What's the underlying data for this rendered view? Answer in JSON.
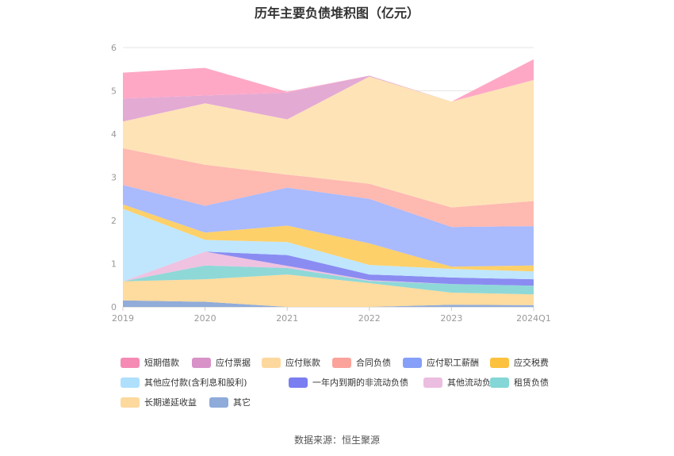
{
  "chart_data": {
    "type": "area",
    "stacked": true,
    "title": "历年主要负债堆积图（亿元）",
    "categories": [
      "2019",
      "2020",
      "2021",
      "2022",
      "2023",
      "2024Q1"
    ],
    "ylim": [
      0,
      6
    ],
    "yticks": [
      "0",
      "1",
      "2",
      "3",
      "4",
      "5",
      "6"
    ],
    "grid": true,
    "legend_position": "bottom",
    "series": [
      {
        "name": "其它",
        "color": "#91acd9",
        "values": [
          0.15,
          0.12,
          0.0,
          0.0,
          0.05,
          0.04
        ]
      },
      {
        "name": "长期递延收益",
        "color": "#fedb9e",
        "values": [
          0.44,
          0.52,
          0.75,
          0.55,
          0.28,
          0.25
        ]
      },
      {
        "name": "租赁负债",
        "color": "#8fd8d8",
        "values": [
          0.0,
          0.32,
          0.15,
          0.05,
          0.2,
          0.2
        ]
      },
      {
        "name": "其他流动负债",
        "color": "#efc2e1",
        "values": [
          0.0,
          0.32,
          0.05,
          0.02,
          0.0,
          0.0
        ]
      },
      {
        "name": "一年内到期的非流动负债",
        "color": "#8a8cf2",
        "values": [
          0.0,
          0.0,
          0.25,
          0.13,
          0.15,
          0.15
        ]
      },
      {
        "name": "其他应付款(含利息和股利)",
        "color": "#bfe6fd",
        "values": [
          1.68,
          0.27,
          0.3,
          0.22,
          0.2,
          0.18
        ]
      },
      {
        "name": "应交税费",
        "color": "#fed069",
        "values": [
          0.1,
          0.17,
          0.38,
          0.5,
          0.05,
          0.14
        ]
      },
      {
        "name": "应付职工薪酬",
        "color": "#a9bafd",
        "values": [
          0.45,
          0.62,
          0.88,
          1.03,
          0.92,
          0.91
        ]
      },
      {
        "name": "合同负债",
        "color": "#feb9b1",
        "values": [
          0.85,
          0.95,
          0.3,
          0.35,
          0.45,
          0.58
        ]
      },
      {
        "name": "应付账款",
        "color": "#fee3b7",
        "values": [
          0.62,
          1.42,
          1.28,
          2.48,
          2.45,
          2.8
        ]
      },
      {
        "name": "应付票据",
        "color": "#e3aad4",
        "values": [
          0.53,
          0.18,
          0.62,
          0.02,
          0.0,
          0.0
        ]
      },
      {
        "name": "短期借款",
        "color": "#fea8c6",
        "values": [
          0.6,
          0.64,
          0.02,
          0.0,
          0.0,
          0.48
        ]
      }
    ]
  },
  "legend_order": [
    "短期借款",
    "应付票据",
    "应付账款",
    "合同负债",
    "应付职工薪酬",
    "应交税费",
    "其他应付款(含利息和股利)",
    "一年内到期的非流动负债",
    "其他流动负债",
    "租赁负债",
    "长期递延收益",
    "其它"
  ],
  "legend_colors": [
    "#f58bb4",
    "#d892c8",
    "#fdd89e",
    "#fba39a",
    "#869ff8",
    "#fcc13f",
    "#aee0fd",
    "#7a7ef0",
    "#ebbde0",
    "#85d6d6",
    "#fdd99e",
    "#8eabda"
  ],
  "source": "数据来源：恒生聚源"
}
